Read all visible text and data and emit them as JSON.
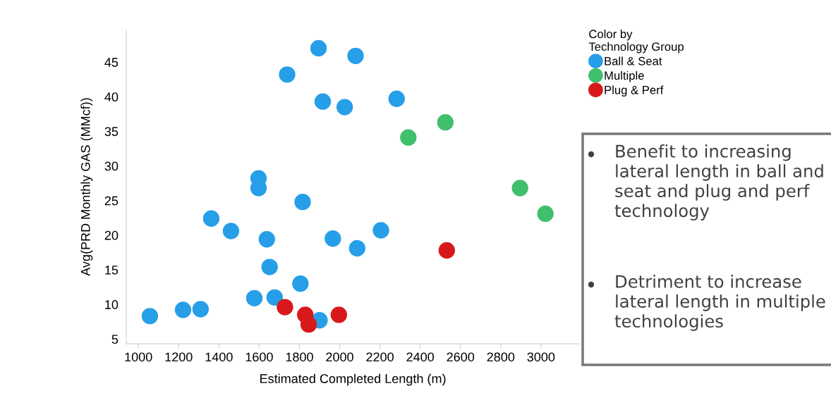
{
  "chart_data": {
    "type": "scatter",
    "xlabel": "Estimated Completed Length (m)",
    "ylabel": "Avg(PRD Monthly GAS (MMcf))",
    "legend_title": "Color by\nTechnology Group",
    "legend": "top right",
    "marker": "circle",
    "grid": false,
    "xlim": [
      940,
      3190
    ],
    "xticks": [
      1000,
      1200,
      1400,
      1600,
      1800,
      2000,
      2200,
      2400,
      2600,
      2800,
      3000
    ],
    "ylim": [
      4.3,
      49.7
    ],
    "yticks": [
      5,
      10,
      15,
      20,
      25,
      30,
      35,
      40,
      45
    ],
    "series": [
      {
        "name": "Ball & Seat",
        "color": "#279fe8",
        "x": [
          1895,
          2079,
          1739,
          1916,
          2025,
          2283,
          1597,
          1597,
          1816,
          1362,
          1460,
          1638,
          1966,
          2087,
          2205,
          1652,
          1805,
          1576,
          1677,
          1057,
          1222,
          1309,
          1900
        ],
        "values": [
          47.0,
          45.9,
          43.2,
          39.3,
          38.5,
          39.7,
          28.2,
          26.8,
          24.8,
          22.4,
          20.6,
          19.4,
          19.5,
          18.1,
          20.7,
          15.4,
          13.0,
          10.9,
          11.0,
          8.3,
          9.2,
          9.3,
          7.7
        ]
      },
      {
        "name": "Multiple",
        "color": "#40bf6c",
        "x": [
          2341,
          2525,
          2896,
          3022
        ],
        "values": [
          34.1,
          36.3,
          26.8,
          23.1
        ]
      },
      {
        "name": "Plug & Perf",
        "color": "#d7191c",
        "x": [
          1728,
          1829,
          1846,
          1996,
          2532
        ],
        "values": [
          9.6,
          8.5,
          7.1,
          8.5,
          17.8
        ]
      }
    ],
    "annotations": [
      "Benefit to increasing lateral length in ball and seat and plug and perf technology",
      "Detriment to increase lateral length in multiple technologies"
    ]
  }
}
